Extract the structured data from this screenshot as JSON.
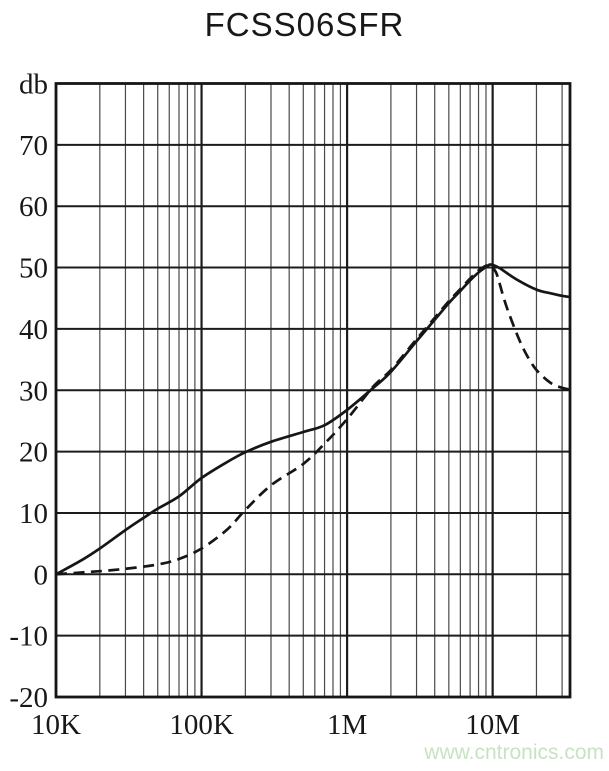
{
  "page": {
    "title": "FCSS06SFR",
    "watermark": "www.cntronics.com"
  },
  "colors": {
    "curve": "#161616",
    "grid_major": "#1c1c1c",
    "grid_minor": "#4a4a4a",
    "border": "#161616",
    "label": "#181818",
    "watermark": "#c8e3c3",
    "background": "#ffffff"
  },
  "chart_data": {
    "type": "line",
    "title": "FCSS06SFR",
    "grid": true,
    "legend": "none",
    "x_axis": {
      "scale": "log",
      "min": 10000,
      "max": 34000000,
      "ticks": [
        {
          "label": "10K",
          "value": 10000
        },
        {
          "label": "100K",
          "value": 100000
        },
        {
          "label": "1M",
          "value": 1000000
        },
        {
          "label": "10M",
          "value": 10000000
        }
      ]
    },
    "y_axis": {
      "label": "db",
      "min": -20,
      "max": 80,
      "step": 10,
      "ticks": [
        {
          "label": "db",
          "value": 80
        },
        {
          "label": "70",
          "value": 70
        },
        {
          "label": "60",
          "value": 60
        },
        {
          "label": "50",
          "value": 50
        },
        {
          "label": "40",
          "value": 40
        },
        {
          "label": "30",
          "value": 30
        },
        {
          "label": "20",
          "value": 20
        },
        {
          "label": "10",
          "value": 10
        },
        {
          "label": "0",
          "value": 0
        },
        {
          "label": "-10",
          "value": -10
        },
        {
          "label": "-20",
          "value": -20
        }
      ]
    },
    "series": [
      {
        "name": "solid-curve",
        "style": "solid",
        "points": [
          [
            10000,
            0
          ],
          [
            15000,
            2.3
          ],
          [
            20000,
            4.2
          ],
          [
            30000,
            7.2
          ],
          [
            40000,
            9.2
          ],
          [
            50000,
            10.7
          ],
          [
            70000,
            12.7
          ],
          [
            100000,
            15.7
          ],
          [
            150000,
            18.3
          ],
          [
            200000,
            19.9
          ],
          [
            300000,
            21.6
          ],
          [
            500000,
            23.2
          ],
          [
            700000,
            24.3
          ],
          [
            1000000,
            26.8
          ],
          [
            1500000,
            30.3
          ],
          [
            2000000,
            33.0
          ],
          [
            3000000,
            38.0
          ],
          [
            4000000,
            41.5
          ],
          [
            5000000,
            44.2
          ],
          [
            6000000,
            46.2
          ],
          [
            7000000,
            47.9
          ],
          [
            8000000,
            49.2
          ],
          [
            9000000,
            50.1
          ],
          [
            9700000,
            50.5
          ],
          [
            11000000,
            50.0
          ],
          [
            12000000,
            49.4
          ],
          [
            15000000,
            47.9
          ],
          [
            20000000,
            46.4
          ],
          [
            25000000,
            45.8
          ],
          [
            30000000,
            45.4
          ],
          [
            34000000,
            45.2
          ]
        ]
      },
      {
        "name": "dashed-curve",
        "style": "dashed",
        "points": [
          [
            10000,
            0
          ],
          [
            15000,
            0.3
          ],
          [
            20000,
            0.5
          ],
          [
            30000,
            0.9
          ],
          [
            50000,
            1.6
          ],
          [
            70000,
            2.5
          ],
          [
            100000,
            4.2
          ],
          [
            150000,
            7.3
          ],
          [
            200000,
            10.5
          ],
          [
            300000,
            14.5
          ],
          [
            500000,
            18.0
          ],
          [
            700000,
            21.3
          ],
          [
            1000000,
            25.3
          ],
          [
            1500000,
            30.5
          ],
          [
            2000000,
            33.3
          ],
          [
            3000000,
            38.3
          ],
          [
            4000000,
            41.8
          ],
          [
            5000000,
            44.5
          ],
          [
            6000000,
            46.5
          ],
          [
            7000000,
            48.2
          ],
          [
            8000000,
            49.5
          ],
          [
            9000000,
            50.3
          ],
          [
            9600000,
            50.4
          ],
          [
            10500000,
            49.3
          ],
          [
            11000000,
            47.9
          ],
          [
            12000000,
            44.8
          ],
          [
            13000000,
            42.4
          ],
          [
            15000000,
            38.6
          ],
          [
            17000000,
            35.9
          ],
          [
            20000000,
            33.3
          ],
          [
            25000000,
            31.2
          ],
          [
            30000000,
            30.4
          ],
          [
            34000000,
            30.1
          ]
        ]
      }
    ]
  }
}
